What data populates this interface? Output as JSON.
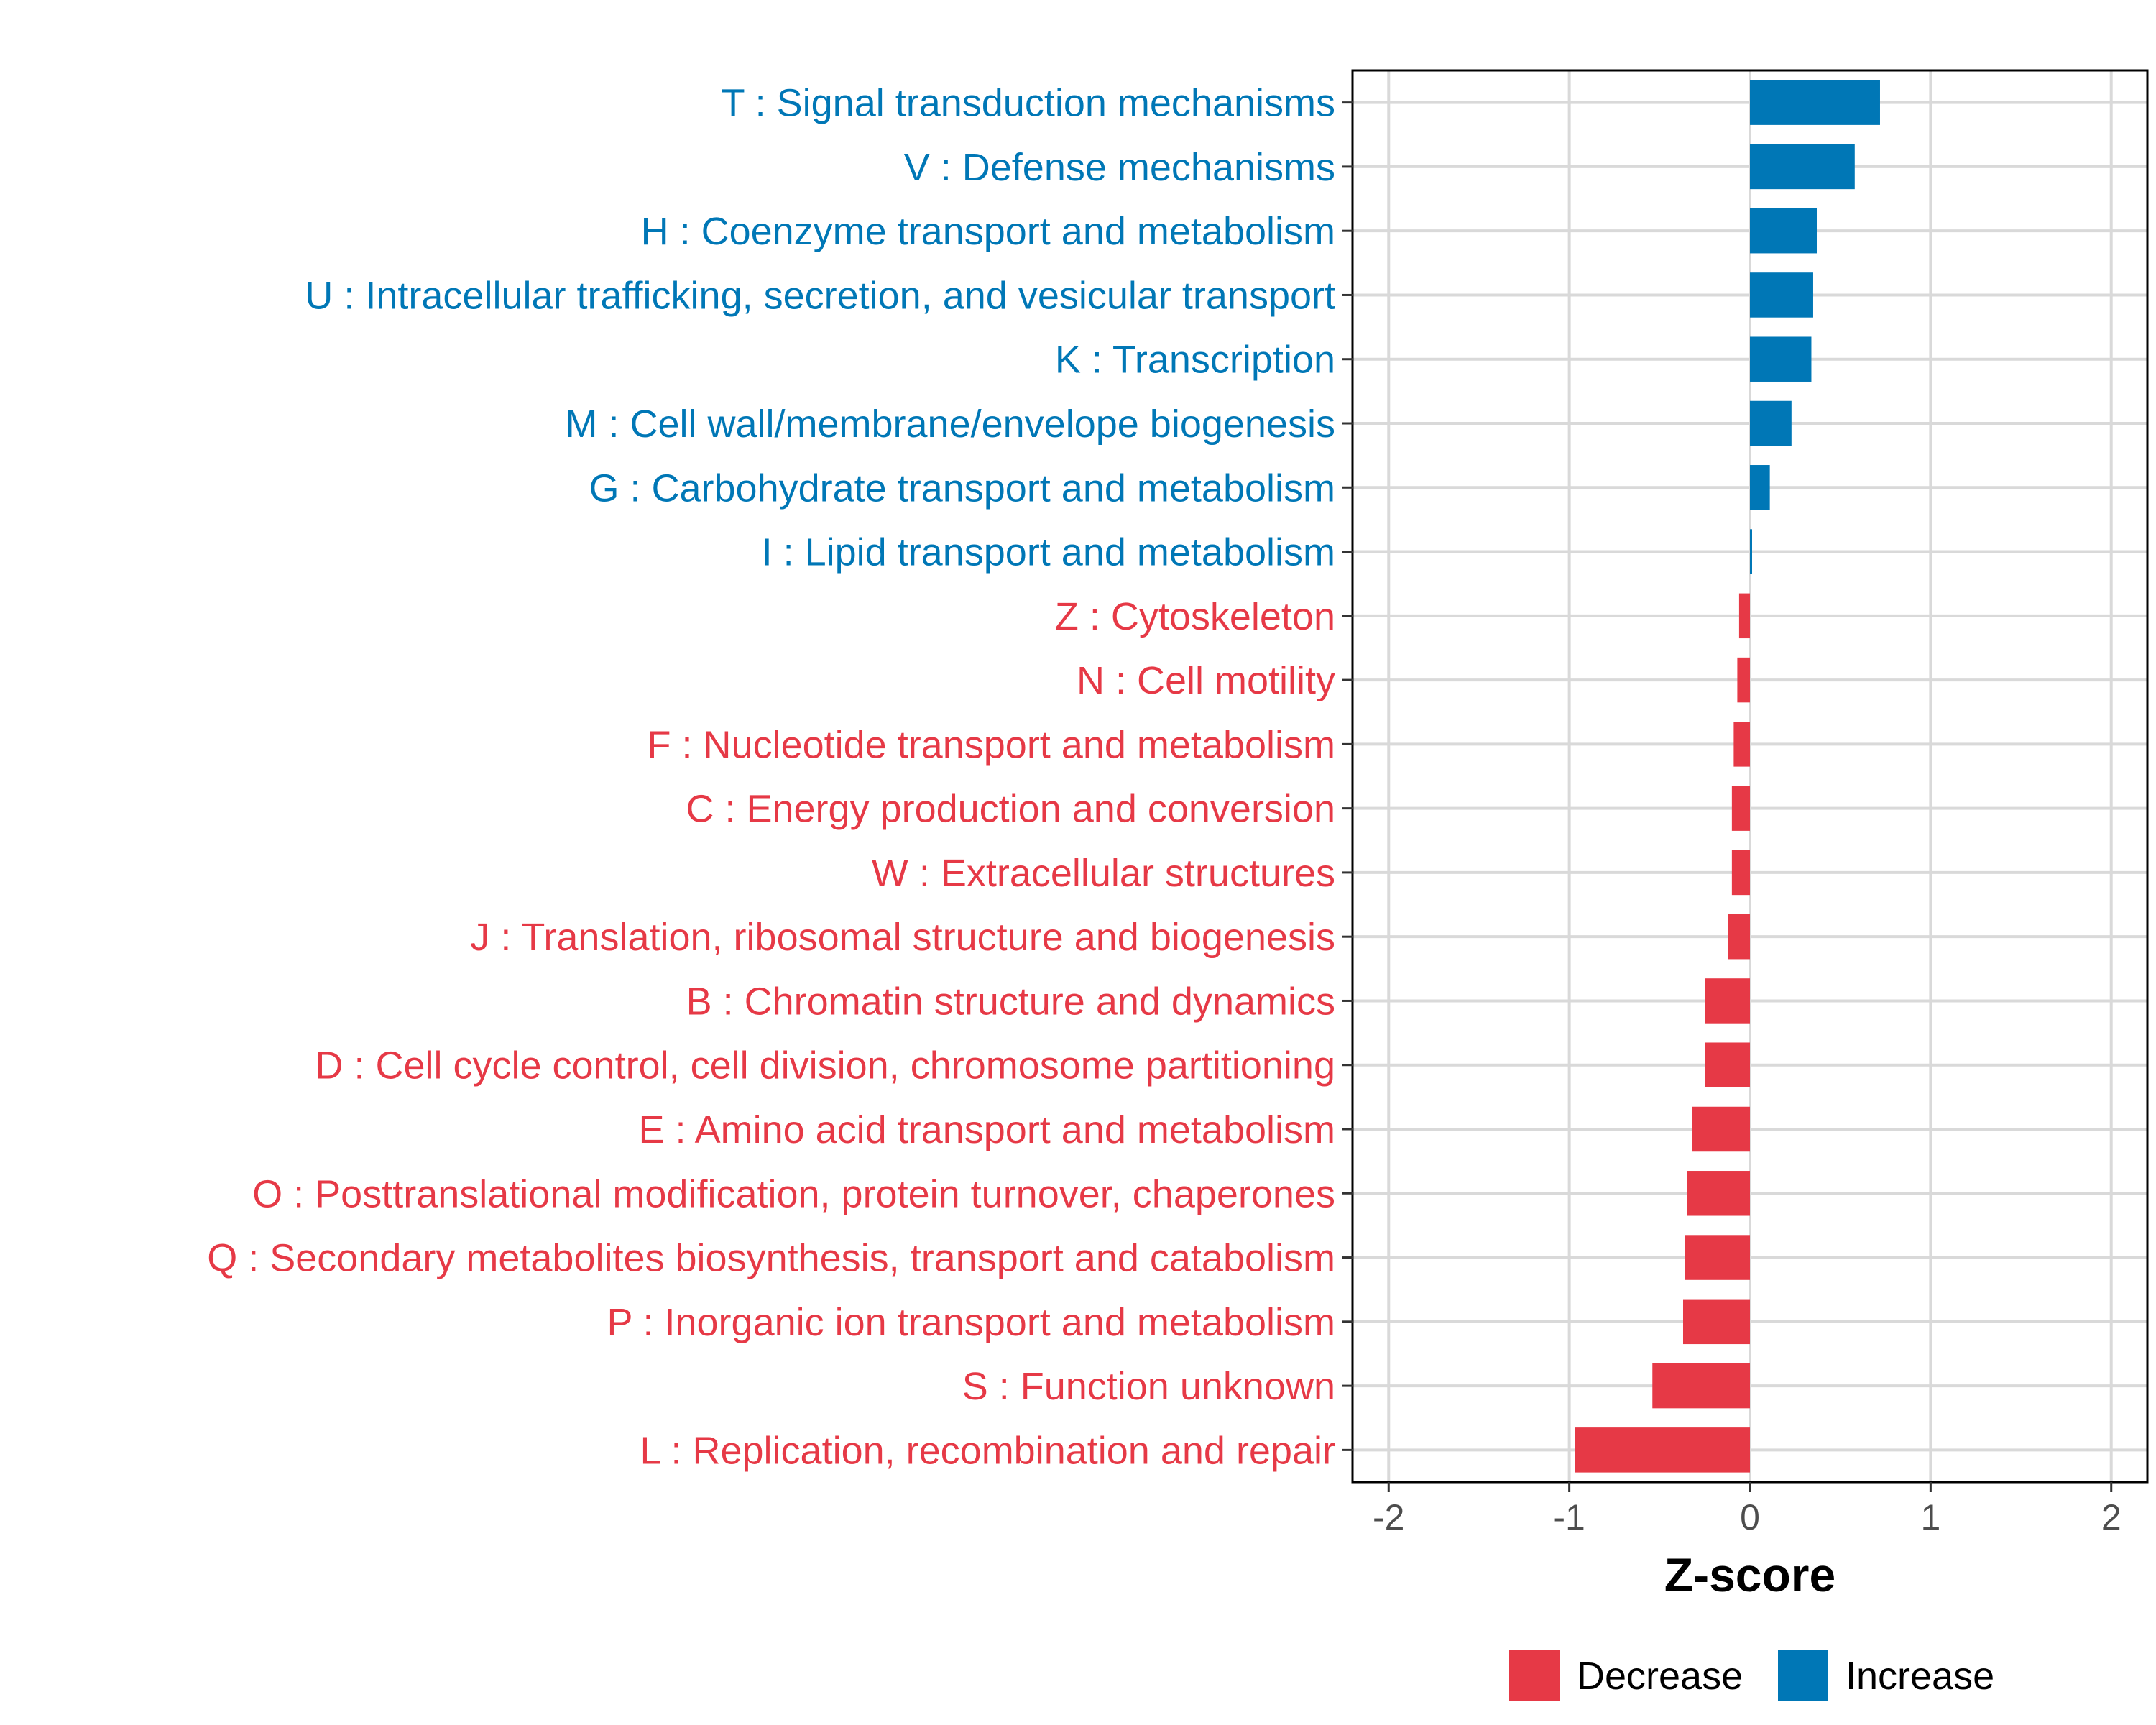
{
  "chart_data": {
    "type": "bar",
    "orientation": "horizontal",
    "xlabel": "Z-score",
    "xlim": [
      -2.2,
      2.2
    ],
    "xticks": [
      -2,
      -1,
      0,
      1,
      2
    ],
    "xtick_labels": [
      "-2",
      "-1",
      "0",
      "1",
      "2"
    ],
    "grid": true,
    "colors": {
      "Increase": "#0077b6",
      "Decrease": "#e63946"
    },
    "legend": {
      "position": "bottom",
      "entries": [
        {
          "name": "Decrease",
          "color": "#e63946"
        },
        {
          "name": "Increase",
          "color": "#0077b6"
        }
      ]
    },
    "categories": [
      "T : Signal transduction mechanisms",
      "V : Defense mechanisms",
      "H : Coenzyme transport and metabolism",
      "U : Intracellular trafficking, secretion, and vesicular transport",
      "K : Transcription",
      "M : Cell wall/membrane/envelope biogenesis",
      "G : Carbohydrate transport and metabolism",
      "I : Lipid transport and metabolism",
      "Z : Cytoskeleton",
      "N : Cell motility",
      "F : Nucleotide transport and metabolism",
      "C : Energy production and conversion",
      "W : Extracellular structures",
      "J : Translation, ribosomal structure and biogenesis",
      "B : Chromatin structure and dynamics",
      "D : Cell cycle control, cell division, chromosome partitioning",
      "E : Amino acid transport and metabolism",
      "O : Posttranslational modification, protein turnover, chaperones",
      "Q : Secondary metabolites biosynthesis, transport and catabolism",
      "P : Inorganic ion transport and metabolism",
      "S : Function unknown",
      "L : Replication, recombination and repair"
    ],
    "values": [
      0.72,
      0.58,
      0.37,
      0.35,
      0.34,
      0.23,
      0.11,
      0.01,
      -0.06,
      -0.07,
      -0.09,
      -0.1,
      -0.1,
      -0.12,
      -0.25,
      -0.25,
      -0.32,
      -0.35,
      -0.36,
      -0.37,
      -0.54,
      -0.97
    ],
    "groups": [
      "Increase",
      "Increase",
      "Increase",
      "Increase",
      "Increase",
      "Increase",
      "Increase",
      "Increase",
      "Decrease",
      "Decrease",
      "Decrease",
      "Decrease",
      "Decrease",
      "Decrease",
      "Decrease",
      "Decrease",
      "Decrease",
      "Decrease",
      "Decrease",
      "Decrease",
      "Decrease",
      "Decrease"
    ]
  }
}
